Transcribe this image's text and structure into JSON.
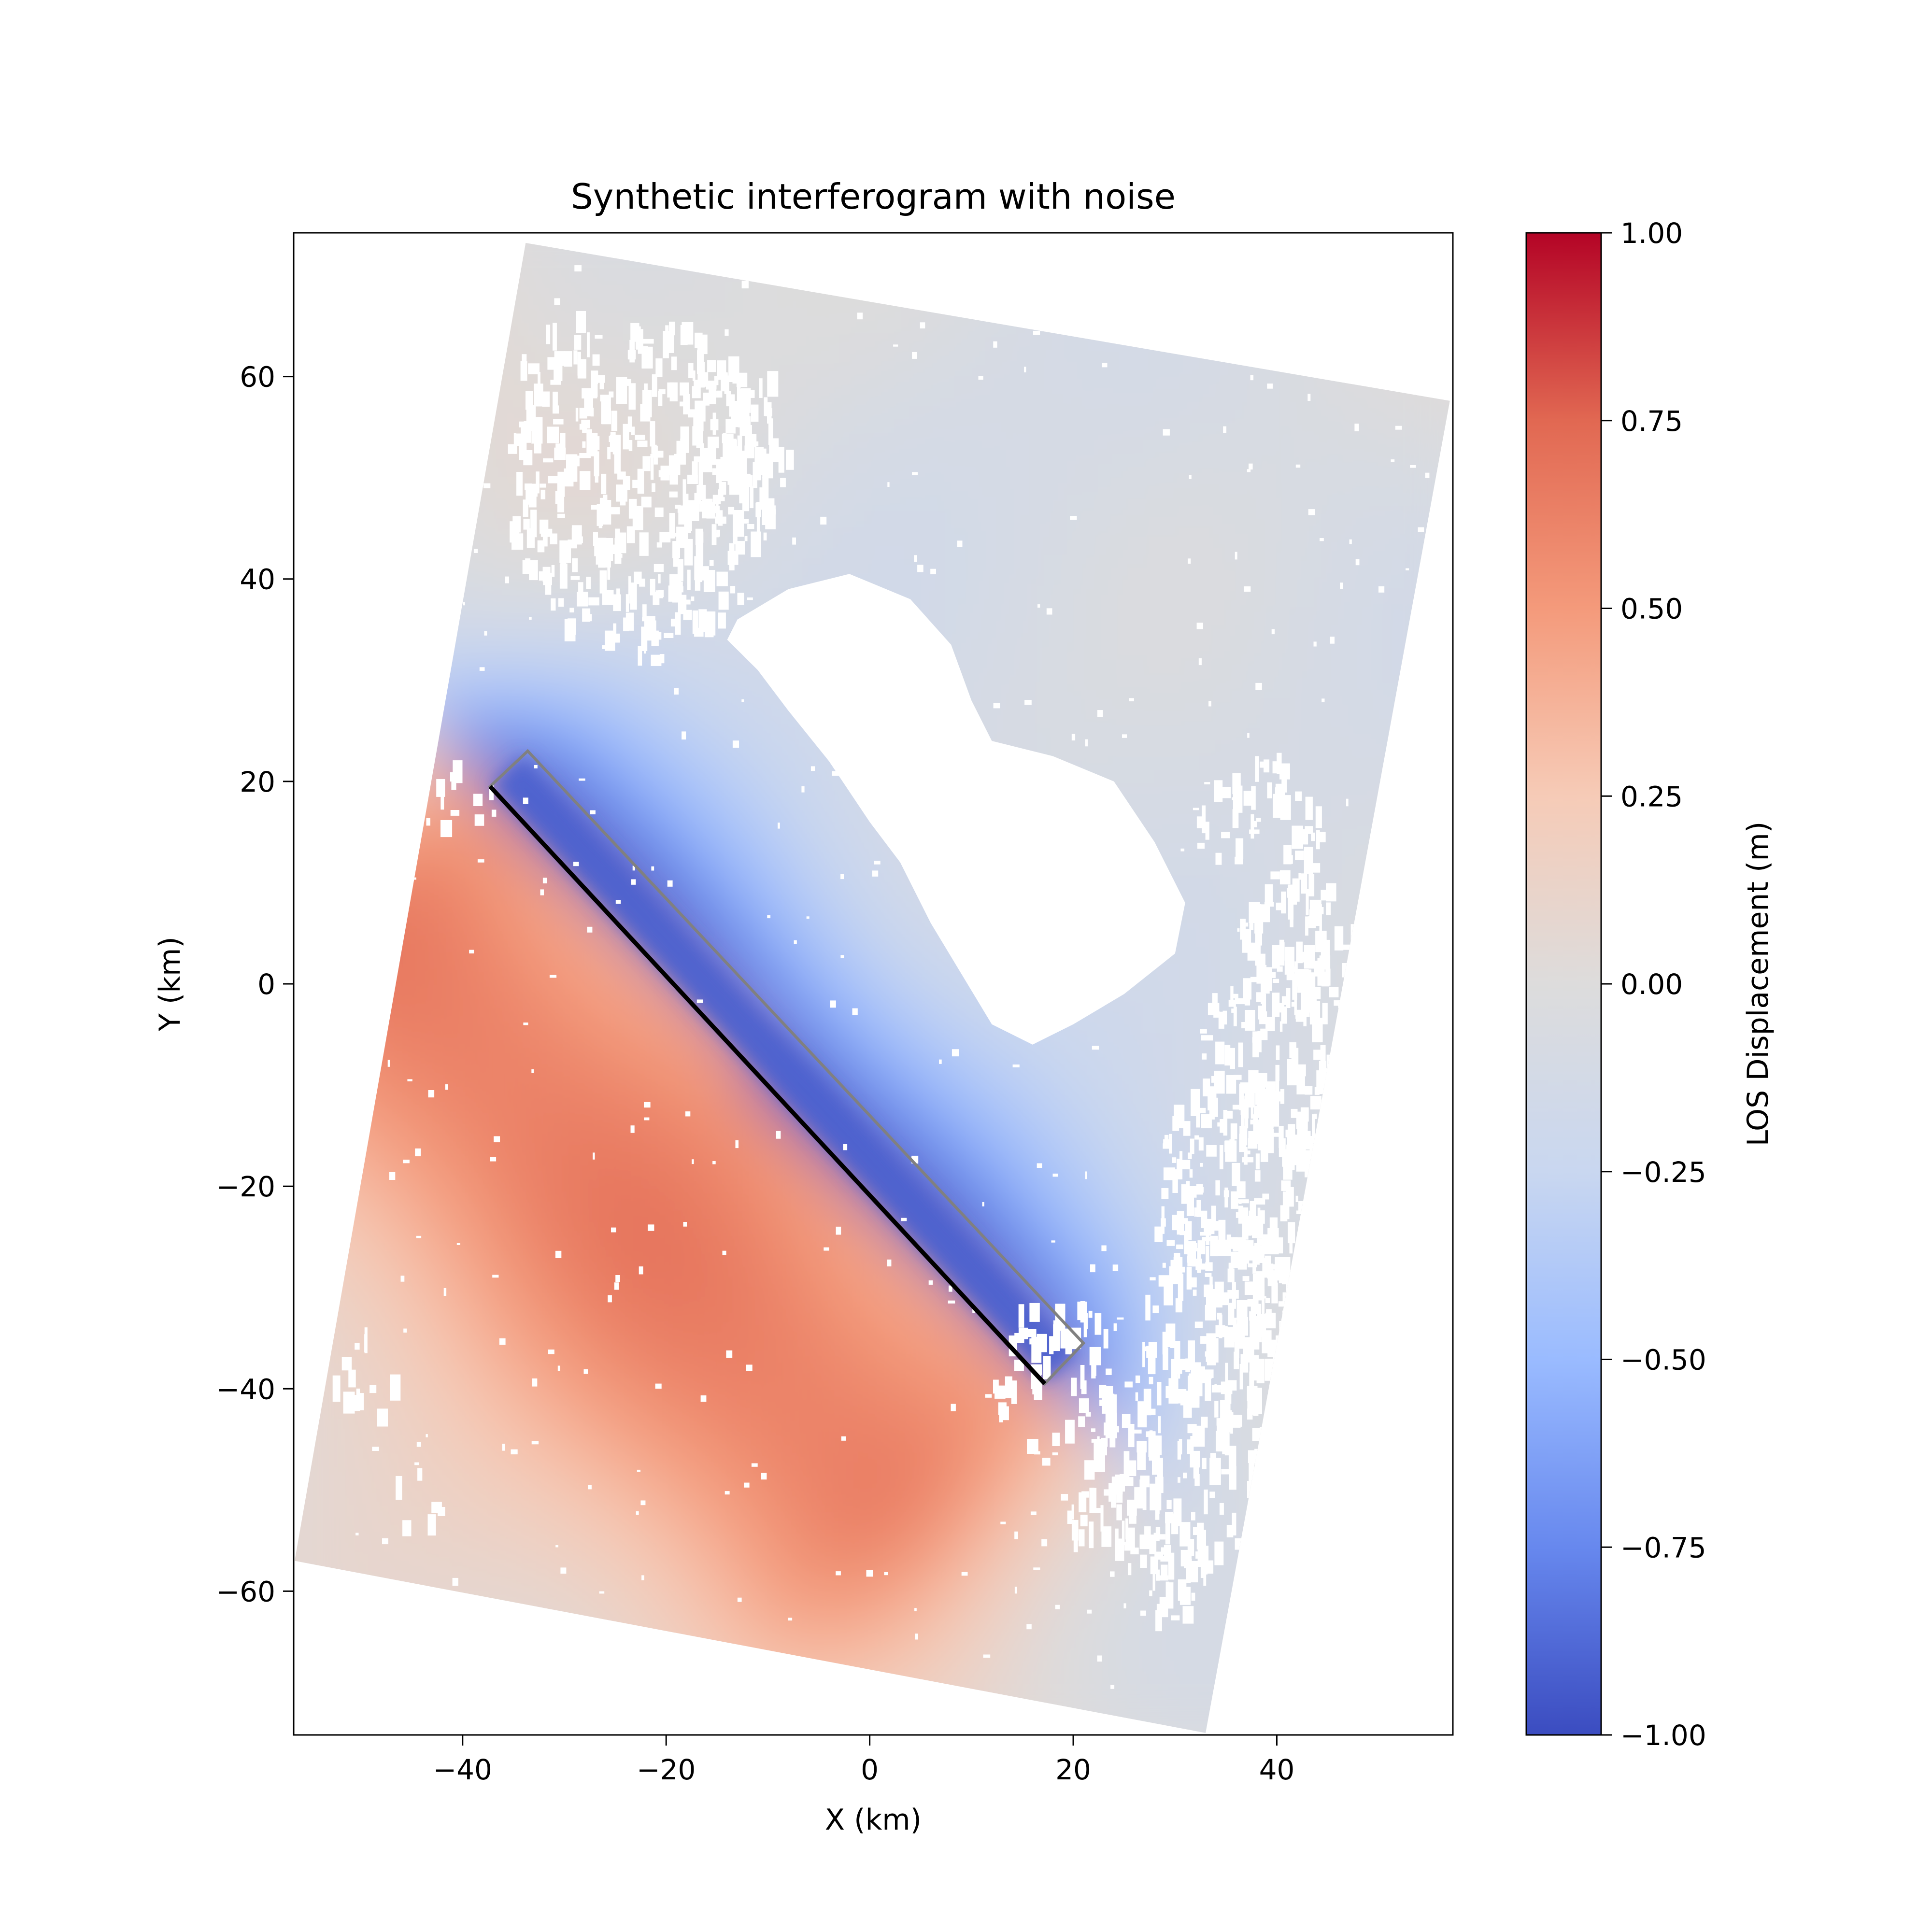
{
  "chart_data": {
    "type": "heatmap",
    "title": "Synthetic interferogram with noise",
    "xlabel": "X (km)",
    "ylabel": "Y (km)",
    "xlim": [
      -56.6,
      57.3
    ],
    "ylim": [
      -74.2,
      74.2
    ],
    "x_ticks": [
      -40,
      -20,
      0,
      20,
      40
    ],
    "x_tick_labels": [
      "−40",
      "−20",
      "0",
      "20",
      "40"
    ],
    "y_ticks": [
      -60,
      -40,
      -20,
      0,
      20,
      40,
      60
    ],
    "y_tick_labels": [
      "−60",
      "−40",
      "−20",
      "0",
      "20",
      "40",
      "60"
    ],
    "grid": false,
    "colormap": "coolwarm",
    "colormap_stops": [
      "#3b4cc0",
      "#6788ee",
      "#9abbff",
      "#c9d7f0",
      "#dddcdc",
      "#f6cbb7",
      "#f49a7b",
      "#e16852",
      "#b40426"
    ],
    "colorbar": {
      "label": "LOS Displacement (m)",
      "range": [
        -1.0,
        1.0
      ],
      "ticks": [
        -1.0,
        -0.75,
        -0.5,
        -0.25,
        0.0,
        0.25,
        0.5,
        0.75,
        1.0
      ],
      "tick_labels": [
        "−1.00",
        "−0.75",
        "−0.50",
        "−0.25",
        "0.00",
        "0.25",
        "0.50",
        "0.75",
        "1.00"
      ]
    },
    "swath_corners_km": [
      [
        -33.8,
        73.2
      ],
      [
        57.0,
        57.6
      ],
      [
        33.0,
        -74.0
      ],
      [
        -56.5,
        -57.0
      ]
    ],
    "fault_trace_km": [
      [
        -37.3,
        19.5
      ],
      [
        17.2,
        -39.5
      ]
    ],
    "fault_box_km": [
      [
        -37.3,
        19.5
      ],
      [
        -33.6,
        23.0
      ],
      [
        21.0,
        -35.5
      ],
      [
        17.2,
        -39.5
      ]
    ],
    "fault_slip_m": -1.0,
    "fault_colors": {
      "trace": "#000000",
      "box": "#808080"
    },
    "no_data_color": "#ffffff"
  }
}
